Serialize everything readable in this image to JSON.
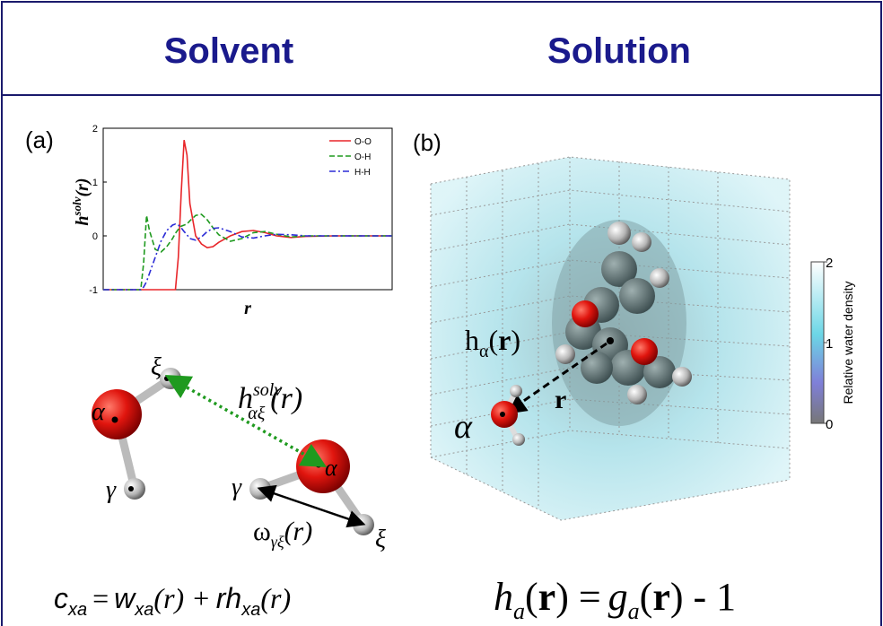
{
  "header": {
    "left": "Solvent",
    "right": "Solution"
  },
  "panel_a": {
    "label": "(a)",
    "ylabel": [
      "h",
      "solv",
      "(r)"
    ],
    "diagram": {
      "alpha_1": "α",
      "xi_1": "ξ",
      "gamma_1": "γ",
      "alpha_2": "α",
      "gamma_2": "γ",
      "xi_2": "ξ",
      "h_label": [
        "h",
        "solv",
        "αξ",
        "(r)"
      ],
      "omega_label": [
        "ω",
        "γξ",
        "(r)"
      ]
    }
  },
  "panel_b": {
    "label": "(b)",
    "h_label": [
      "h",
      "α",
      "(",
      "r",
      ")"
    ],
    "r_label": "r",
    "alpha": "α"
  },
  "colorbar": {
    "label": "Relative water density",
    "lim": [
      0,
      2
    ],
    "ticks": [
      0,
      1,
      2
    ]
  },
  "equations": {
    "left": [
      "c",
      "xa",
      "=",
      "w",
      "xa",
      "(r) +",
      "r",
      "h",
      "xa",
      "(r)"
    ],
    "right": [
      "h",
      "a",
      "(",
      "r",
      ") =",
      "g",
      "a",
      "(",
      "r",
      ") - 1"
    ]
  },
  "chart_data": {
    "type": "line",
    "xlabel": "r",
    "x": [
      0,
      1.3,
      1.4,
      1.5,
      1.6,
      1.8,
      2.0,
      2.2,
      2.4,
      2.5,
      2.6,
      2.7,
      2.8,
      2.9,
      3.0,
      3.2,
      3.4,
      3.6,
      3.8,
      4.0,
      4.4,
      4.8,
      5.2,
      5.6,
      6.0,
      6.5,
      7,
      8,
      9,
      10
    ],
    "xlim": [
      0,
      10
    ],
    "ylim": [
      -1,
      2
    ],
    "yticks": [
      -1,
      0,
      1,
      2
    ],
    "legend": "upper right",
    "series": [
      {
        "name": "O-O",
        "color": "#e8262a",
        "dash": "solid",
        "values": [
          -1,
          -1,
          -1,
          -1,
          -1,
          -1,
          -1,
          -1,
          -1,
          -1,
          -0.4,
          0.8,
          1.78,
          1.5,
          0.6,
          0.0,
          -0.15,
          -0.22,
          -0.2,
          -0.12,
          0.0,
          0.08,
          0.1,
          0.06,
          0.0,
          -0.03,
          -0.01,
          0,
          0,
          0
        ]
      },
      {
        "name": "O-H",
        "color": "#1f9a1f",
        "dash": "dashed",
        "values": [
          -1,
          -1,
          -0.5,
          0.38,
          0.1,
          -0.25,
          -0.3,
          -0.2,
          -0.05,
          0.05,
          0.12,
          0.18,
          0.2,
          0.22,
          0.28,
          0.38,
          0.4,
          0.3,
          0.15,
          0.02,
          -0.1,
          -0.05,
          0.06,
          0.08,
          0.03,
          -0.02,
          0,
          0,
          0,
          0
        ]
      },
      {
        "name": "H-H",
        "color": "#2b2bd6",
        "dash": "dashdot",
        "values": [
          -1,
          -1,
          -0.95,
          -0.85,
          -0.7,
          -0.4,
          -0.1,
          0.1,
          0.2,
          0.22,
          0.2,
          0.15,
          0.08,
          0.02,
          -0.05,
          -0.08,
          -0.02,
          0.08,
          0.14,
          0.15,
          0.08,
          -0.02,
          -0.04,
          0.0,
          0.03,
          0.02,
          0,
          0,
          0,
          0
        ]
      }
    ]
  }
}
